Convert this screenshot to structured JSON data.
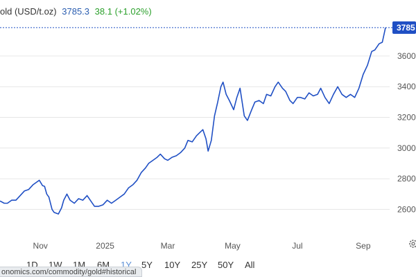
{
  "header": {
    "title": "old (USD/t.oz)",
    "price": "3785.3",
    "change": "38.1 (+1.02%)"
  },
  "price_tag": "3785",
  "url_text": "onomics.com/commodity/gold#historical",
  "range_buttons": [
    "1D",
    "1W",
    "1M",
    "6M",
    "1Y",
    "5Y",
    "10Y",
    "25Y",
    "50Y",
    "All"
  ],
  "active_range": "1Y",
  "colors": {
    "line": "#1f4fc4",
    "price_tag_bg": "#1f4fc4",
    "grid": "#e6e6e6",
    "change_positive": "#2ba02b",
    "active_range": "#5b8fd6"
  },
  "icons": {
    "settings": "gear-icon"
  },
  "chart_data": {
    "type": "line",
    "title": "",
    "xlabel": "",
    "ylabel": "",
    "x_ticks": [
      "Nov",
      "2025",
      "Mar",
      "May",
      "Jul",
      "Sep"
    ],
    "y_ticks": [
      2600,
      2800,
      3000,
      3200,
      3400,
      3600
    ],
    "y_tick_labels": [
      "2600",
      "2800",
      "3000",
      "3200",
      "3400",
      "3600"
    ],
    "ylim": [
      2430,
      3830
    ],
    "grid": true,
    "last_value": 3785.3,
    "series": [
      {
        "x": [
          "2024-09-24",
          "2024-09-28",
          "2024-10-01",
          "2024-10-05",
          "2024-10-09",
          "2024-10-13",
          "2024-10-17",
          "2024-10-21",
          "2024-10-25",
          "2024-10-29",
          "2024-10-31",
          "2024-11-03",
          "2024-11-05",
          "2024-11-07",
          "2024-11-09",
          "2024-11-12",
          "2024-11-14",
          "2024-11-18",
          "2024-11-21",
          "2024-11-23",
          "2024-11-26",
          "2024-11-29",
          "2024-12-03",
          "2024-12-07",
          "2024-12-11",
          "2024-12-15",
          "2024-12-19",
          "2024-12-22",
          "2024-12-26",
          "2024-12-30",
          "2025-01-03",
          "2025-01-07",
          "2025-01-11",
          "2025-01-15",
          "2025-01-19",
          "2025-01-23",
          "2025-01-27",
          "2025-01-31",
          "2025-02-04",
          "2025-02-08",
          "2025-02-11",
          "2025-02-15",
          "2025-02-19",
          "2025-02-22",
          "2025-02-26",
          "2025-03-01",
          "2025-03-05",
          "2025-03-09",
          "2025-03-13",
          "2025-03-17",
          "2025-03-20",
          "2025-03-24",
          "2025-03-28",
          "2025-03-31",
          "2025-04-03",
          "2025-04-06",
          "2025-04-08",
          "2025-04-11",
          "2025-04-14",
          "2025-04-17",
          "2025-04-20",
          "2025-04-22",
          "2025-04-25",
          "2025-04-28",
          "2025-05-02",
          "2025-05-05",
          "2025-05-08",
          "2025-05-12",
          "2025-05-15",
          "2025-05-19",
          "2025-05-22",
          "2025-05-26",
          "2025-05-30",
          "2025-06-02",
          "2025-06-06",
          "2025-06-10",
          "2025-06-13",
          "2025-06-17",
          "2025-06-20",
          "2025-06-24",
          "2025-06-27",
          "2025-07-01",
          "2025-07-04",
          "2025-07-08",
          "2025-07-12",
          "2025-07-16",
          "2025-07-20",
          "2025-07-23",
          "2025-07-27",
          "2025-07-31",
          "2025-08-04",
          "2025-08-08",
          "2025-08-12",
          "2025-08-16",
          "2025-08-20",
          "2025-08-24",
          "2025-08-28",
          "2025-09-01",
          "2025-09-05",
          "2025-09-09",
          "2025-09-12",
          "2025-09-16",
          "2025-09-19",
          "2025-09-22"
        ],
        "values": [
          2655,
          2640,
          2640,
          2660,
          2660,
          2690,
          2720,
          2730,
          2760,
          2780,
          2790,
          2755,
          2750,
          2700,
          2680,
          2600,
          2580,
          2570,
          2610,
          2660,
          2700,
          2660,
          2640,
          2670,
          2660,
          2690,
          2650,
          2620,
          2620,
          2630,
          2660,
          2640,
          2660,
          2680,
          2700,
          2740,
          2760,
          2790,
          2840,
          2870,
          2900,
          2920,
          2940,
          2960,
          2930,
          2920,
          2940,
          2950,
          2970,
          3000,
          3050,
          3040,
          3080,
          3100,
          3120,
          3060,
          2980,
          3050,
          3210,
          3300,
          3400,
          3430,
          3350,
          3310,
          3250,
          3330,
          3390,
          3210,
          3180,
          3250,
          3300,
          3310,
          3290,
          3350,
          3340,
          3400,
          3430,
          3390,
          3370,
          3310,
          3290,
          3330,
          3330,
          3320,
          3360,
          3340,
          3350,
          3390,
          3330,
          3290,
          3350,
          3400,
          3350,
          3330,
          3350,
          3330,
          3390,
          3480,
          3540,
          3630,
          3640,
          3680,
          3690,
          3785.3
        ]
      }
    ]
  }
}
